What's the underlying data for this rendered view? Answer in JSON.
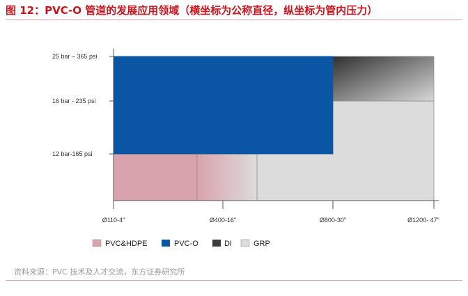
{
  "title": "图 12：PVC-O 管道的发展应用领域（横坐标为公称直径，纵坐标为管内压力）",
  "source": "资料来源：PVC 技术及人才交流，东方证券研究所",
  "colors": {
    "title": "#c8151d",
    "PVC&HDPE": "#d9a3ab",
    "PVC-O": "#0a56a4",
    "DI": "#3a3a3a",
    "GRP": "#dcdcdc"
  },
  "chart_data": {
    "type": "area",
    "title": "",
    "xlabel": "",
    "ylabel": "",
    "x_ticks": [
      "Ø110-4\"",
      "Ø400-16\"",
      "Ø800-30\"",
      "Ø1200- 47\""
    ],
    "y_ticks": [
      "12 bar-165 psi",
      "16 bar - 235 psi",
      "25 bar – 365 psi"
    ],
    "legend": [
      "PVC&HDPE",
      "PVC-O",
      "DI",
      "GRP"
    ],
    "legend_position": "bottom",
    "grid": false,
    "regions": [
      {
        "name": "PVC&HDPE",
        "x": [
          "Ø110-4\"",
          "Ø400-16\""
        ],
        "y": [
          "0",
          "12 bar-165 psi"
        ],
        "note": "fades into GRP around Ø400-16\""
      },
      {
        "name": "PVC-O",
        "x": [
          "Ø110-4\"",
          "Ø800-30\""
        ],
        "y": [
          "12 bar-165 psi",
          "25 bar – 365 psi"
        ]
      },
      {
        "name": "DI",
        "x": [
          "Ø800-30\"",
          "Ø1200- 47\""
        ],
        "y": [
          "16 bar - 235 psi",
          "25 bar – 365 psi"
        ],
        "note": "fades into GRP"
      },
      {
        "name": "GRP",
        "x": [
          "Ø400-16\"",
          "Ø1200- 47\""
        ],
        "y": [
          "0",
          "16 bar - 235 psi"
        ]
      }
    ]
  }
}
